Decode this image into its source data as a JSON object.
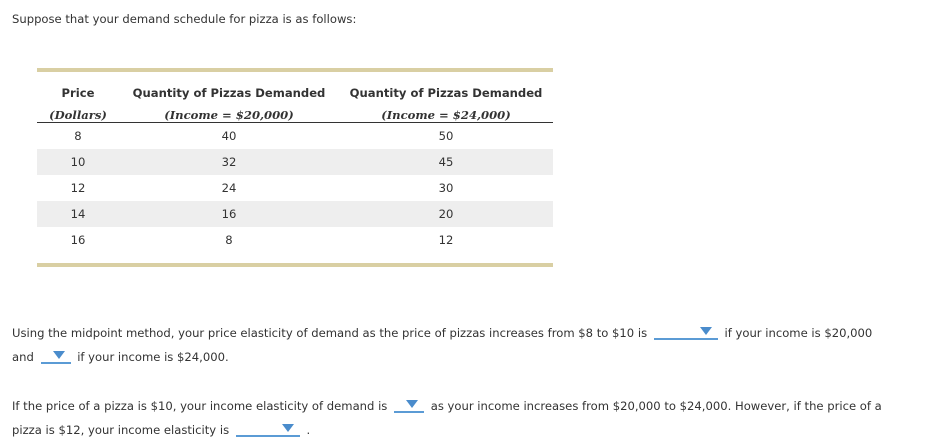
{
  "intro": "Suppose that your demand schedule for pizza is as follows:",
  "table": {
    "headers": [
      {
        "title": "Price",
        "sub": "(Dollars)"
      },
      {
        "title": "Quantity of Pizzas Demanded",
        "sub": "(Income = $20,000)"
      },
      {
        "title": "Quantity of Pizzas Demanded",
        "sub": "(Income = $24,000)"
      }
    ],
    "rows": [
      [
        "8",
        "40",
        "50"
      ],
      [
        "10",
        "32",
        "45"
      ],
      [
        "12",
        "24",
        "30"
      ],
      [
        "14",
        "16",
        "20"
      ],
      [
        "16",
        "8",
        "12"
      ]
    ]
  },
  "q1": {
    "part1": "Using the midpoint method, your price elasticity of demand as the price of pizzas increases from $8 to $10 is",
    "part2": "if your income is $20,000",
    "part3": "and",
    "part4": "if your income is $24,000."
  },
  "q2": {
    "part1": "If the price of a pizza is $10, your income elasticity of demand is",
    "part2": "as your income increases from $20,000 to $24,000. However, if the price of a",
    "part3": "pizza is $12, your income elasticity is",
    "part4": "."
  },
  "colors": {
    "accent": "#5b9bd5",
    "table_rule": "#d9cfa3",
    "row_alt": "#eeeeee"
  }
}
